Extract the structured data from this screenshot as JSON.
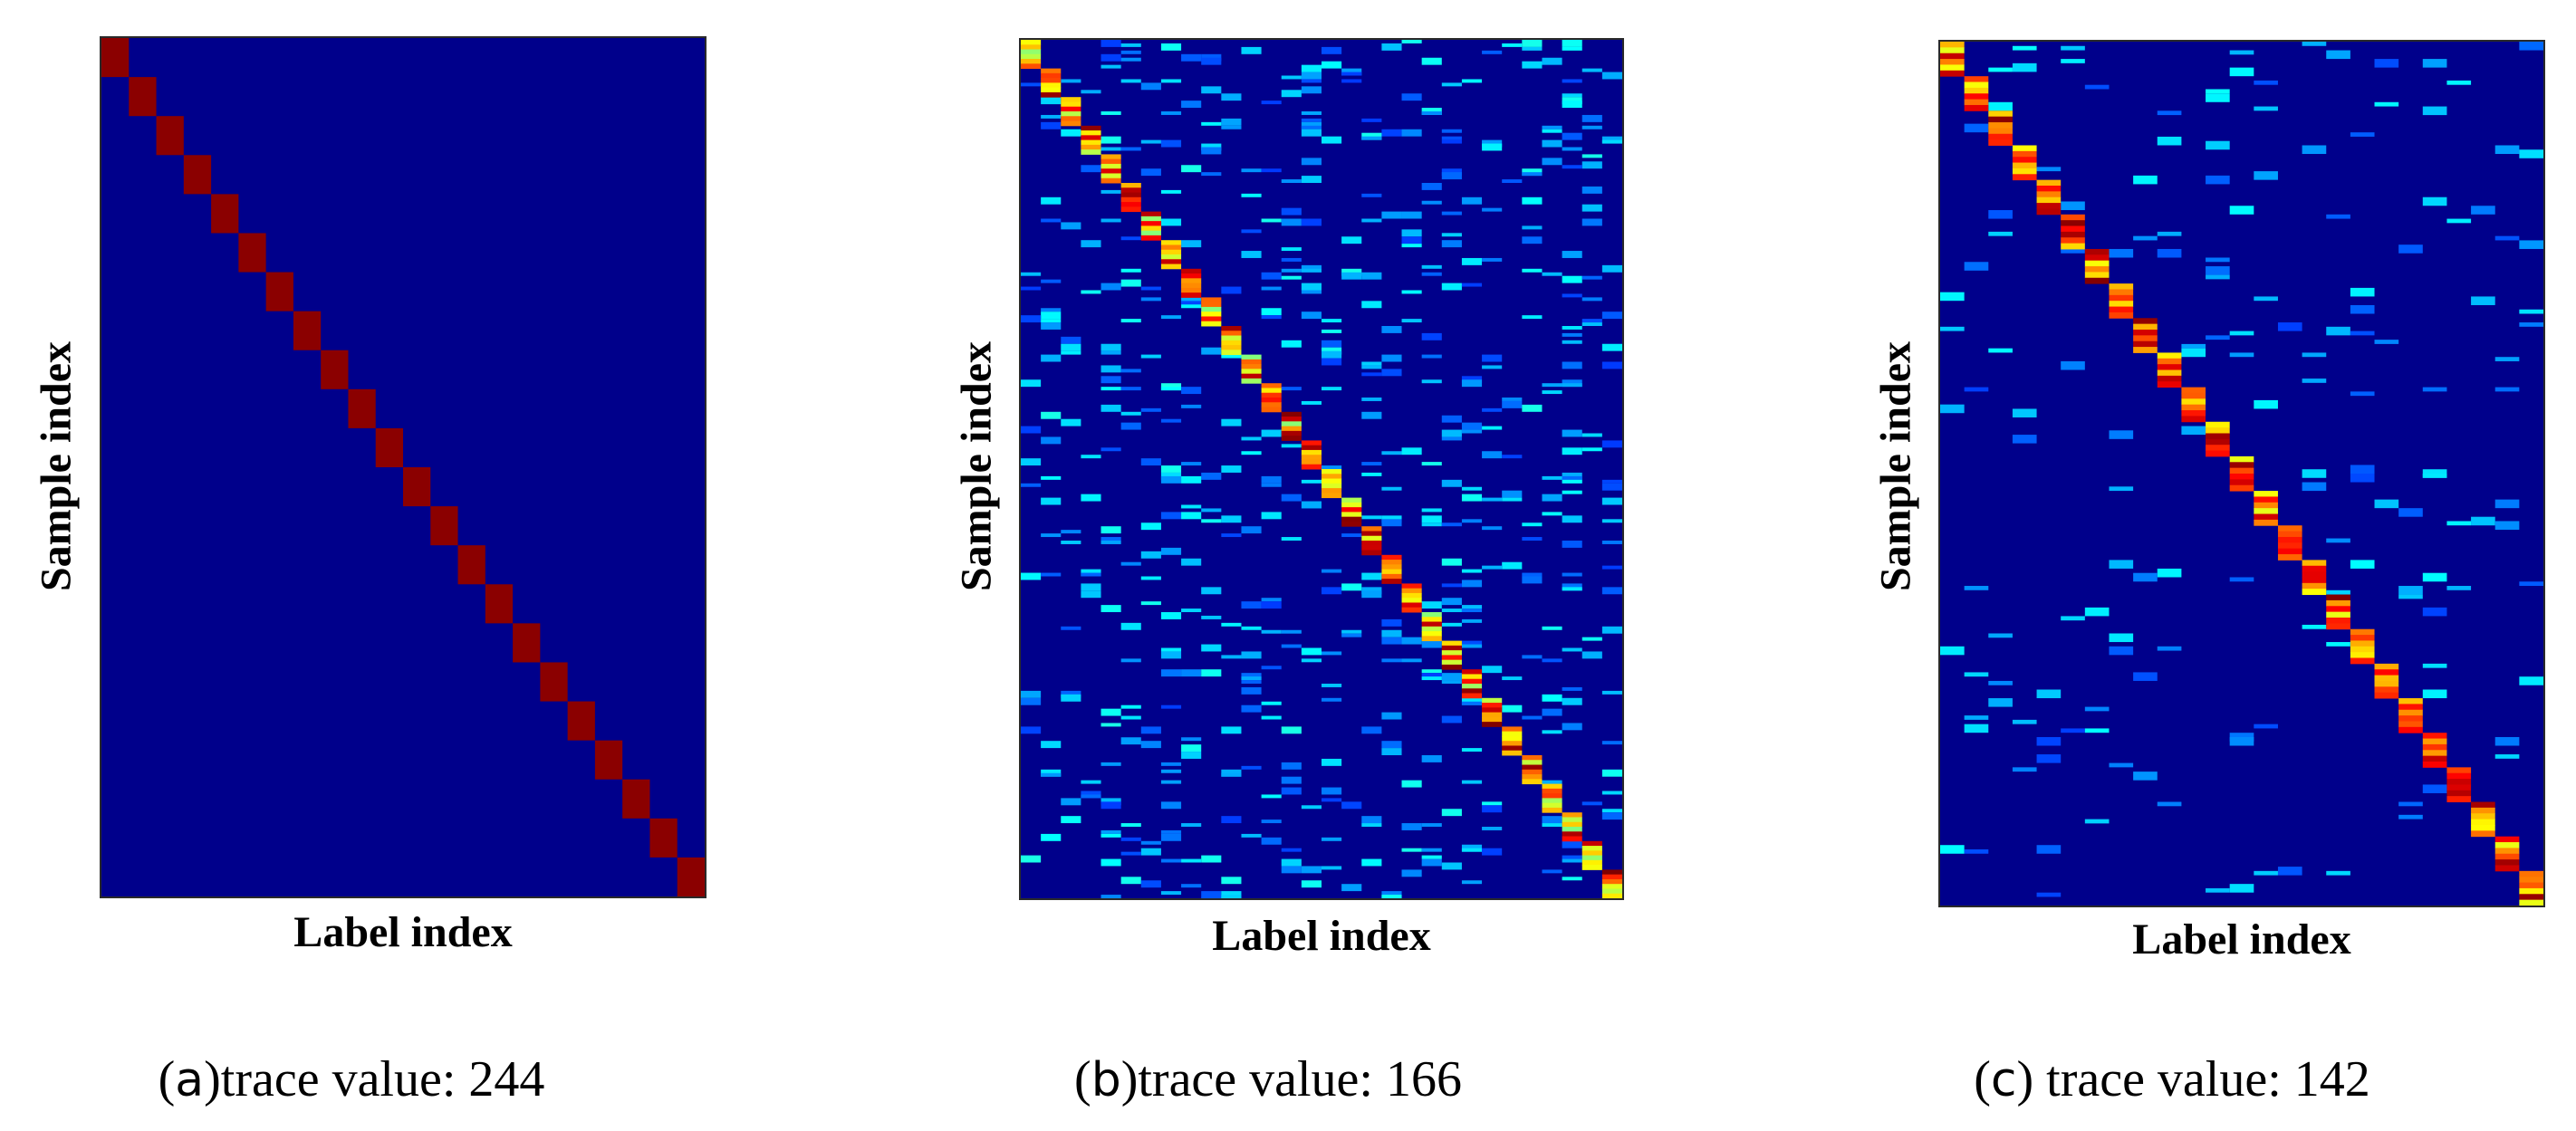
{
  "chart_data": [
    {
      "type": "heatmap",
      "panel_letter": "a",
      "caption_text": "trace value: 244",
      "caption_gap": "",
      "title": "",
      "xlabel": "Label index",
      "ylabel": "Sample index",
      "n_labels": 22,
      "colormap": "jet",
      "background_color": "#00008b",
      "cells": []
    },
    {
      "type": "heatmap",
      "panel_letter": "b",
      "caption_text": "trace value: 166",
      "caption_gap": "",
      "title": "",
      "xlabel": "Label index",
      "ylabel": "Sample index",
      "n_labels": 30,
      "colormap": "jet",
      "background_color": "#00008b",
      "cells": []
    },
    {
      "type": "heatmap",
      "panel_letter": "c",
      "caption_text": "trace value: 142",
      "caption_gap": " ",
      "title": "",
      "xlabel": "Label index",
      "ylabel": "Sample index",
      "n_labels": 25,
      "colormap": "jet",
      "background_color": "#00008b",
      "cells": []
    }
  ]
}
